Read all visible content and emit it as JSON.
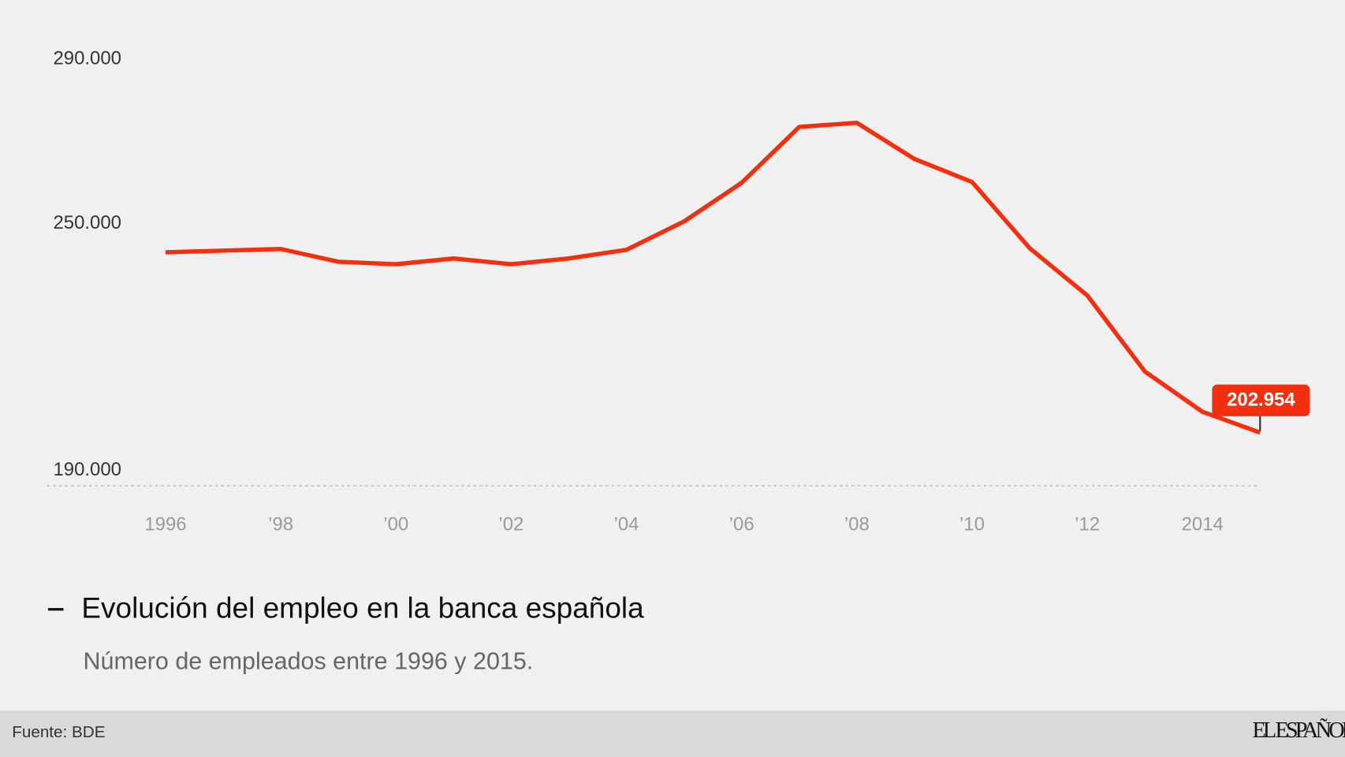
{
  "chart_data": {
    "type": "line",
    "title": "Evolución del empleo en la banca española",
    "subtitle": "Número de empleados entre 1996 y 2015.",
    "source": "Fuente: BDE",
    "brand": "EL ESPAÑOL",
    "x": [
      1996,
      1997,
      1998,
      1999,
      2000,
      2001,
      2002,
      2003,
      2004,
      2005,
      2006,
      2007,
      2008,
      2009,
      2010,
      2011,
      2012,
      2013,
      2014,
      2015
    ],
    "series": [
      {
        "name": "Evolución del empleo en la banca española",
        "color": "#f2300f",
        "values": [
          246800,
          247200,
          247600,
          244500,
          243900,
          245300,
          243900,
          245300,
          247400,
          254300,
          263700,
          277300,
          278300,
          269500,
          263900,
          247800,
          236300,
          217800,
          208000,
          202954
        ],
        "value_labels": [
          null,
          null,
          null,
          null,
          null,
          null,
          null,
          null,
          null,
          null,
          null,
          null,
          null,
          null,
          null,
          null,
          null,
          null,
          null,
          "202.954"
        ]
      }
    ],
    "xlim": [
      1996,
      2015
    ],
    "xticks": [
      {
        "value": 1996,
        "label": "1996"
      },
      {
        "value": 1998,
        "label": "’98"
      },
      {
        "value": 2000,
        "label": "’00"
      },
      {
        "value": 2002,
        "label": "’02"
      },
      {
        "value": 2004,
        "label": "’04"
      },
      {
        "value": 2006,
        "label": "’06"
      },
      {
        "value": 2008,
        "label": "’08"
      },
      {
        "value": 2010,
        "label": "’10"
      },
      {
        "value": 2012,
        "label": "’12"
      },
      {
        "value": 2014,
        "label": "2014"
      }
    ],
    "ylim": [
      190000,
      290000
    ],
    "yticks": [
      {
        "value": 190000,
        "label": "190.000"
      },
      {
        "value": 250000,
        "label": "250.000"
      },
      {
        "value": 290000,
        "label": "290.000"
      }
    ],
    "grid": false
  }
}
